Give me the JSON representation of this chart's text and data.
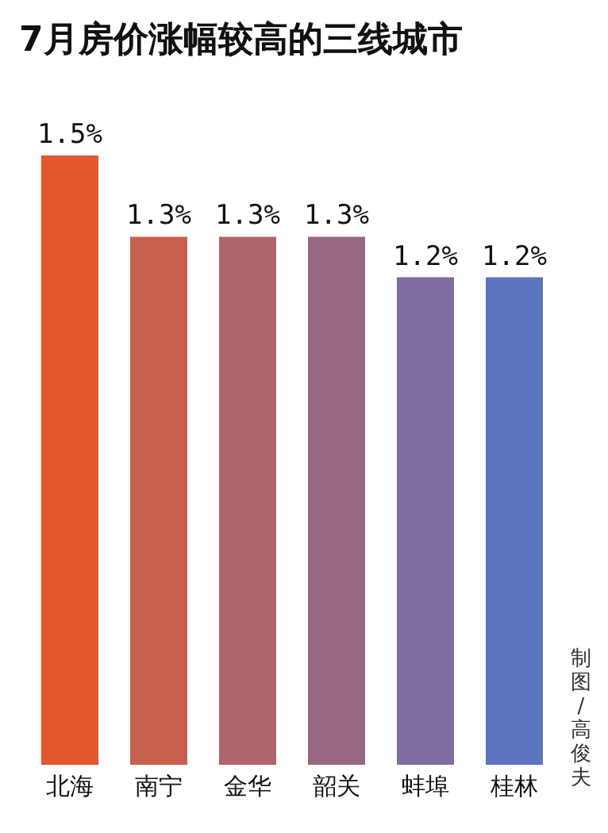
{
  "chart_data": {
    "type": "bar",
    "title": "7月房价涨幅较高的三线城市",
    "categories": [
      "北海",
      "南宁",
      "金华",
      "韶关",
      "蚌埠",
      "桂林"
    ],
    "values": [
      1.5,
      1.3,
      1.3,
      1.3,
      1.2,
      1.2
    ],
    "value_labels": [
      "1.5%",
      "1.3%",
      "1.3%",
      "1.3%",
      "1.2%",
      "1.2%"
    ],
    "colors": [
      "#e2572c",
      "#c8604f",
      "#b0646b",
      "#986883",
      "#7f6ca1",
      "#5a75be"
    ],
    "ylim": [
      0,
      1.5
    ],
    "tick_labels": "x",
    "annotations": [
      "制图/高俊夫"
    ]
  }
}
